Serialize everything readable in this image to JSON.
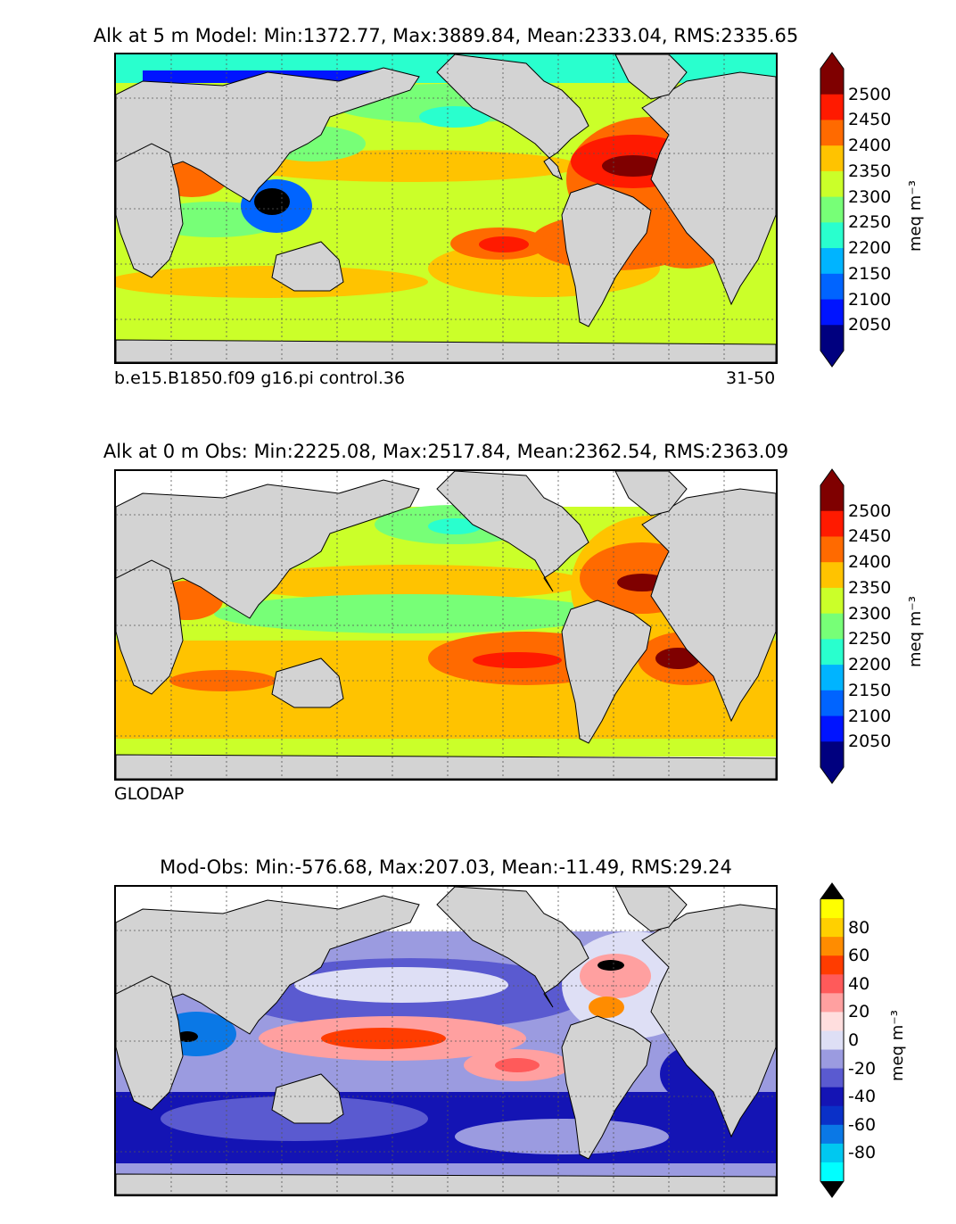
{
  "panels": [
    {
      "title": "Alk at 5 m Model: Min:1372.77, Max:3889.84, Mean:2333.04, RMS:2335.65",
      "sublabel_left": "b.e15.B1850.f09 g16.pi control.36",
      "sublabel_right": "31-50",
      "colorbar": {
        "unit": "meq m⁻³",
        "ticks": [
          "2500",
          "2450",
          "2400",
          "2350",
          "2300",
          "2250",
          "2200",
          "2150",
          "2100",
          "2050"
        ],
        "colors": [
          "#7f0000",
          "#ff1a00",
          "#ff6a00",
          "#ffc300",
          "#cbff29",
          "#77ff77",
          "#29ffce",
          "#00b4ff",
          "#0064ff",
          "#0014ff",
          "#00007f"
        ],
        "extend_top": "#7f0000",
        "extend_bottom": "#00007f"
      }
    },
    {
      "title": "Alk at 0 m Obs: Min:2225.08, Max:2517.84, Mean:2362.54, RMS:2363.09",
      "sublabel_left": "GLODAP",
      "sublabel_right": "",
      "colorbar": {
        "unit": "meq m⁻³",
        "ticks": [
          "2500",
          "2450",
          "2400",
          "2350",
          "2300",
          "2250",
          "2200",
          "2150",
          "2100",
          "2050"
        ],
        "colors": [
          "#7f0000",
          "#ff1a00",
          "#ff6a00",
          "#ffc300",
          "#cbff29",
          "#77ff77",
          "#29ffce",
          "#00b4ff",
          "#0064ff",
          "#0014ff",
          "#00007f"
        ],
        "extend_top": "#7f0000",
        "extend_bottom": "#00007f"
      }
    },
    {
      "title": "Mod-Obs: Min:-576.68, Max:207.03, Mean:-11.49, RMS:29.24",
      "sublabel_left": "",
      "sublabel_right": "",
      "colorbar": {
        "unit": "meq m⁻³",
        "ticks": [
          "80",
          "60",
          "40",
          "20",
          "0",
          "-20",
          "-40",
          "-60",
          "-80"
        ],
        "colors": [
          "#ffff00",
          "#ffd000",
          "#ff8c00",
          "#ff3c00",
          "#ff5a5a",
          "#ffa0a0",
          "#ffdede",
          "#dedff5",
          "#9b9be0",
          "#5a5ad0",
          "#1414b4",
          "#0a30c8",
          "#0a78e6",
          "#00c8f0",
          "#00ffff"
        ],
        "extend_top": "#000000",
        "extend_bottom": "#000000"
      }
    }
  ],
  "colors": {
    "land": "#d3d3d3",
    "grid": "#555555",
    "coast": "#000000"
  }
}
